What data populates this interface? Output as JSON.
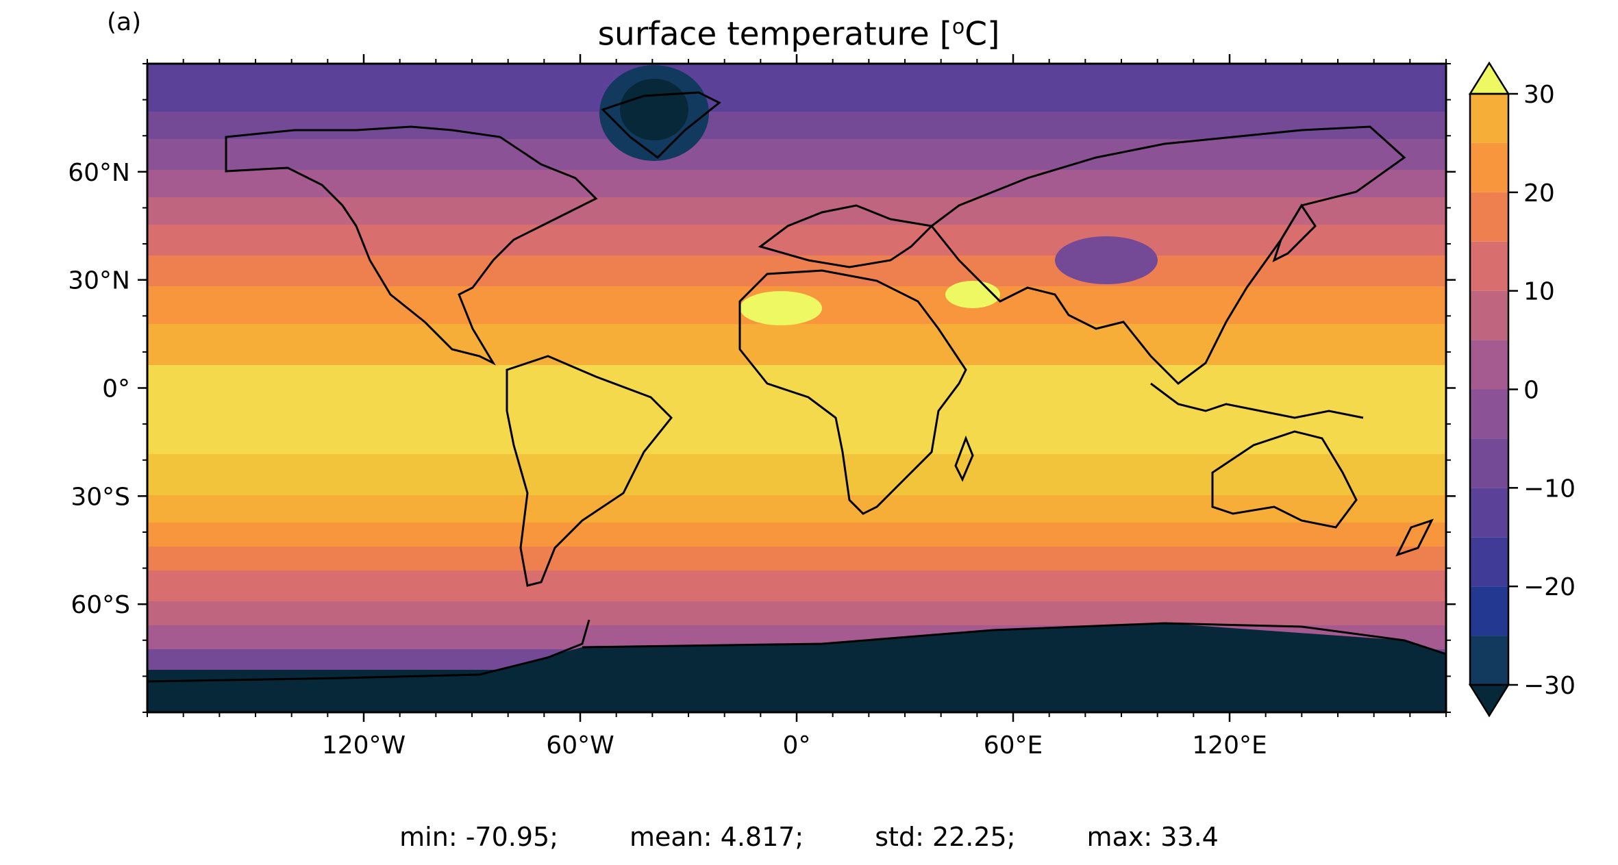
{
  "panel_label": "(a)",
  "title": "surface temperature [",
  "title_sup": "o",
  "title_unit": "C]",
  "map": {
    "projection": "PlateCarree",
    "lon_range": [
      -180,
      180
    ],
    "lat_range": [
      -90,
      90
    ],
    "lon_ticks": [
      {
        "value": -120,
        "label": "120°W"
      },
      {
        "value": -60,
        "label": "60°W"
      },
      {
        "value": 0,
        "label": "0°"
      },
      {
        "value": 60,
        "label": "60°E"
      },
      {
        "value": 120,
        "label": "120°E"
      }
    ],
    "lat_ticks": [
      {
        "value": 60,
        "label": "60°N"
      },
      {
        "value": 30,
        "label": "30°N"
      },
      {
        "value": 0,
        "label": "0°"
      },
      {
        "value": -30,
        "label": "30°S"
      },
      {
        "value": -60,
        "label": "60°S"
      }
    ],
    "coastlines": true
  },
  "colorbar": {
    "min": -30,
    "max": 30,
    "step": 5,
    "extend": "both",
    "ticks": [
      {
        "value": 30,
        "label": "30"
      },
      {
        "value": 20,
        "label": "20"
      },
      {
        "value": 10,
        "label": "10"
      },
      {
        "value": 0,
        "label": "0"
      },
      {
        "value": -10,
        "label": "−10"
      },
      {
        "value": -20,
        "label": "−20"
      },
      {
        "value": -30,
        "label": "−30"
      }
    ],
    "colors": [
      "#062838",
      "#113a5e",
      "#233890",
      "#3f3b96",
      "#5b4298",
      "#744a97",
      "#8c5296",
      "#a55b8f",
      "#c0657f",
      "#d86f6e",
      "#ee8050",
      "#f8963e",
      "#f6ae38",
      "#f2c43c",
      "#f3d94b",
      "#eef862"
    ]
  },
  "stats": {
    "min": "min: -70.95;",
    "mean": "mean: 4.817;",
    "std": "std: 22.25;",
    "max": "max: 33.4"
  }
}
